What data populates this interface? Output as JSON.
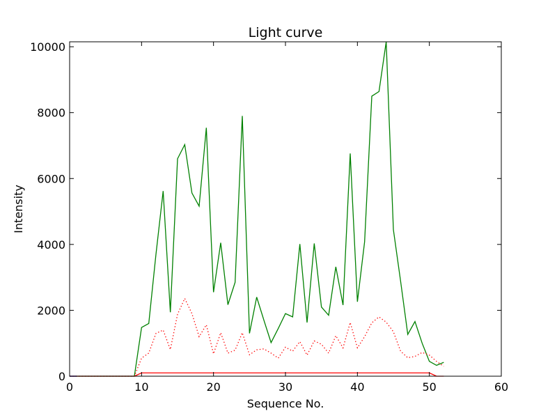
{
  "chart_data": {
    "type": "line",
    "title": "Light curve",
    "xlabel": "Sequence No.",
    "ylabel": "Intensity",
    "xlim": [
      0,
      60
    ],
    "ylim": [
      0,
      10150
    ],
    "grid": false,
    "legend": "none",
    "x_ticks": [
      0,
      10,
      20,
      30,
      40,
      50,
      60
    ],
    "y_ticks": [
      0,
      2000,
      4000,
      6000,
      8000,
      10000
    ],
    "x_tick_labels": [
      "0",
      "10",
      "20",
      "30",
      "40",
      "50",
      "60"
    ],
    "y_tick_labels": [
      "0",
      "2000",
      "4000",
      "6000",
      "8000",
      "10000"
    ],
    "series": [
      {
        "color": "#008000",
        "style": "solid",
        "x": [
          0,
          1,
          2,
          3,
          4,
          5,
          6,
          7,
          8,
          9,
          10,
          11,
          12,
          13,
          14,
          15,
          16,
          17,
          18,
          19,
          20,
          21,
          22,
          23,
          24,
          25,
          26,
          27,
          28,
          29,
          30,
          31,
          32,
          33,
          34,
          35,
          36,
          37,
          38,
          39,
          40,
          41,
          42,
          43,
          44,
          45,
          46,
          47,
          48,
          49,
          50,
          51,
          52
        ],
        "y": [
          0,
          0,
          0,
          0,
          0,
          0,
          0,
          0,
          0,
          0,
          1480,
          1600,
          3700,
          5620,
          1940,
          6600,
          7030,
          5560,
          5160,
          7540,
          2550,
          4050,
          2170,
          2850,
          7900,
          1300,
          2400,
          1700,
          1020,
          1450,
          1900,
          1800,
          4010,
          1630,
          4030,
          2100,
          1850,
          3320,
          2160,
          6760,
          2260,
          4080,
          8500,
          8640,
          10150,
          4450,
          2890,
          1270,
          1660,
          1000,
          450,
          330,
          420
        ]
      },
      {
        "color": "#ff0000",
        "style": "dotted",
        "x": [
          0,
          1,
          2,
          3,
          4,
          5,
          6,
          7,
          8,
          9,
          10,
          11,
          12,
          13,
          14,
          15,
          16,
          17,
          18,
          19,
          20,
          21,
          22,
          23,
          24,
          25,
          26,
          27,
          28,
          29,
          30,
          31,
          32,
          33,
          34,
          35,
          36,
          37,
          38,
          39,
          40,
          41,
          42,
          43,
          44,
          45,
          46,
          47,
          48,
          49,
          50,
          51,
          52
        ],
        "y": [
          0,
          0,
          0,
          0,
          0,
          0,
          0,
          0,
          0,
          0,
          550,
          700,
          1300,
          1400,
          810,
          1880,
          2360,
          1900,
          1200,
          1560,
          680,
          1320,
          700,
          790,
          1320,
          650,
          800,
          830,
          700,
          550,
          880,
          760,
          1050,
          640,
          1070,
          970,
          700,
          1230,
          860,
          1630,
          860,
          1200,
          1620,
          1800,
          1640,
          1350,
          760,
          560,
          600,
          720,
          640,
          450,
          300
        ]
      },
      {
        "color": "#ff0000",
        "style": "solid",
        "x": [
          0,
          1,
          2,
          3,
          4,
          5,
          6,
          7,
          8,
          9,
          10,
          11,
          12,
          13,
          14,
          15,
          16,
          17,
          18,
          19,
          20,
          21,
          22,
          23,
          24,
          25,
          26,
          27,
          28,
          29,
          30,
          31,
          32,
          33,
          34,
          35,
          36,
          37,
          38,
          39,
          40,
          41,
          42,
          43,
          44,
          45,
          46,
          47,
          48,
          49,
          50,
          51,
          52
        ],
        "y": [
          0,
          0,
          0,
          0,
          0,
          0,
          0,
          0,
          0,
          0,
          100,
          100,
          100,
          100,
          100,
          100,
          100,
          100,
          100,
          100,
          100,
          100,
          100,
          100,
          100,
          100,
          100,
          100,
          100,
          100,
          100,
          100,
          100,
          100,
          100,
          100,
          100,
          100,
          100,
          100,
          100,
          100,
          100,
          100,
          100,
          100,
          100,
          100,
          100,
          100,
          100,
          0,
          0
        ]
      },
      {
        "color": "#0000ff",
        "style": "solid",
        "x": [
          0,
          1
        ],
        "y": [
          0,
          0
        ]
      }
    ]
  }
}
